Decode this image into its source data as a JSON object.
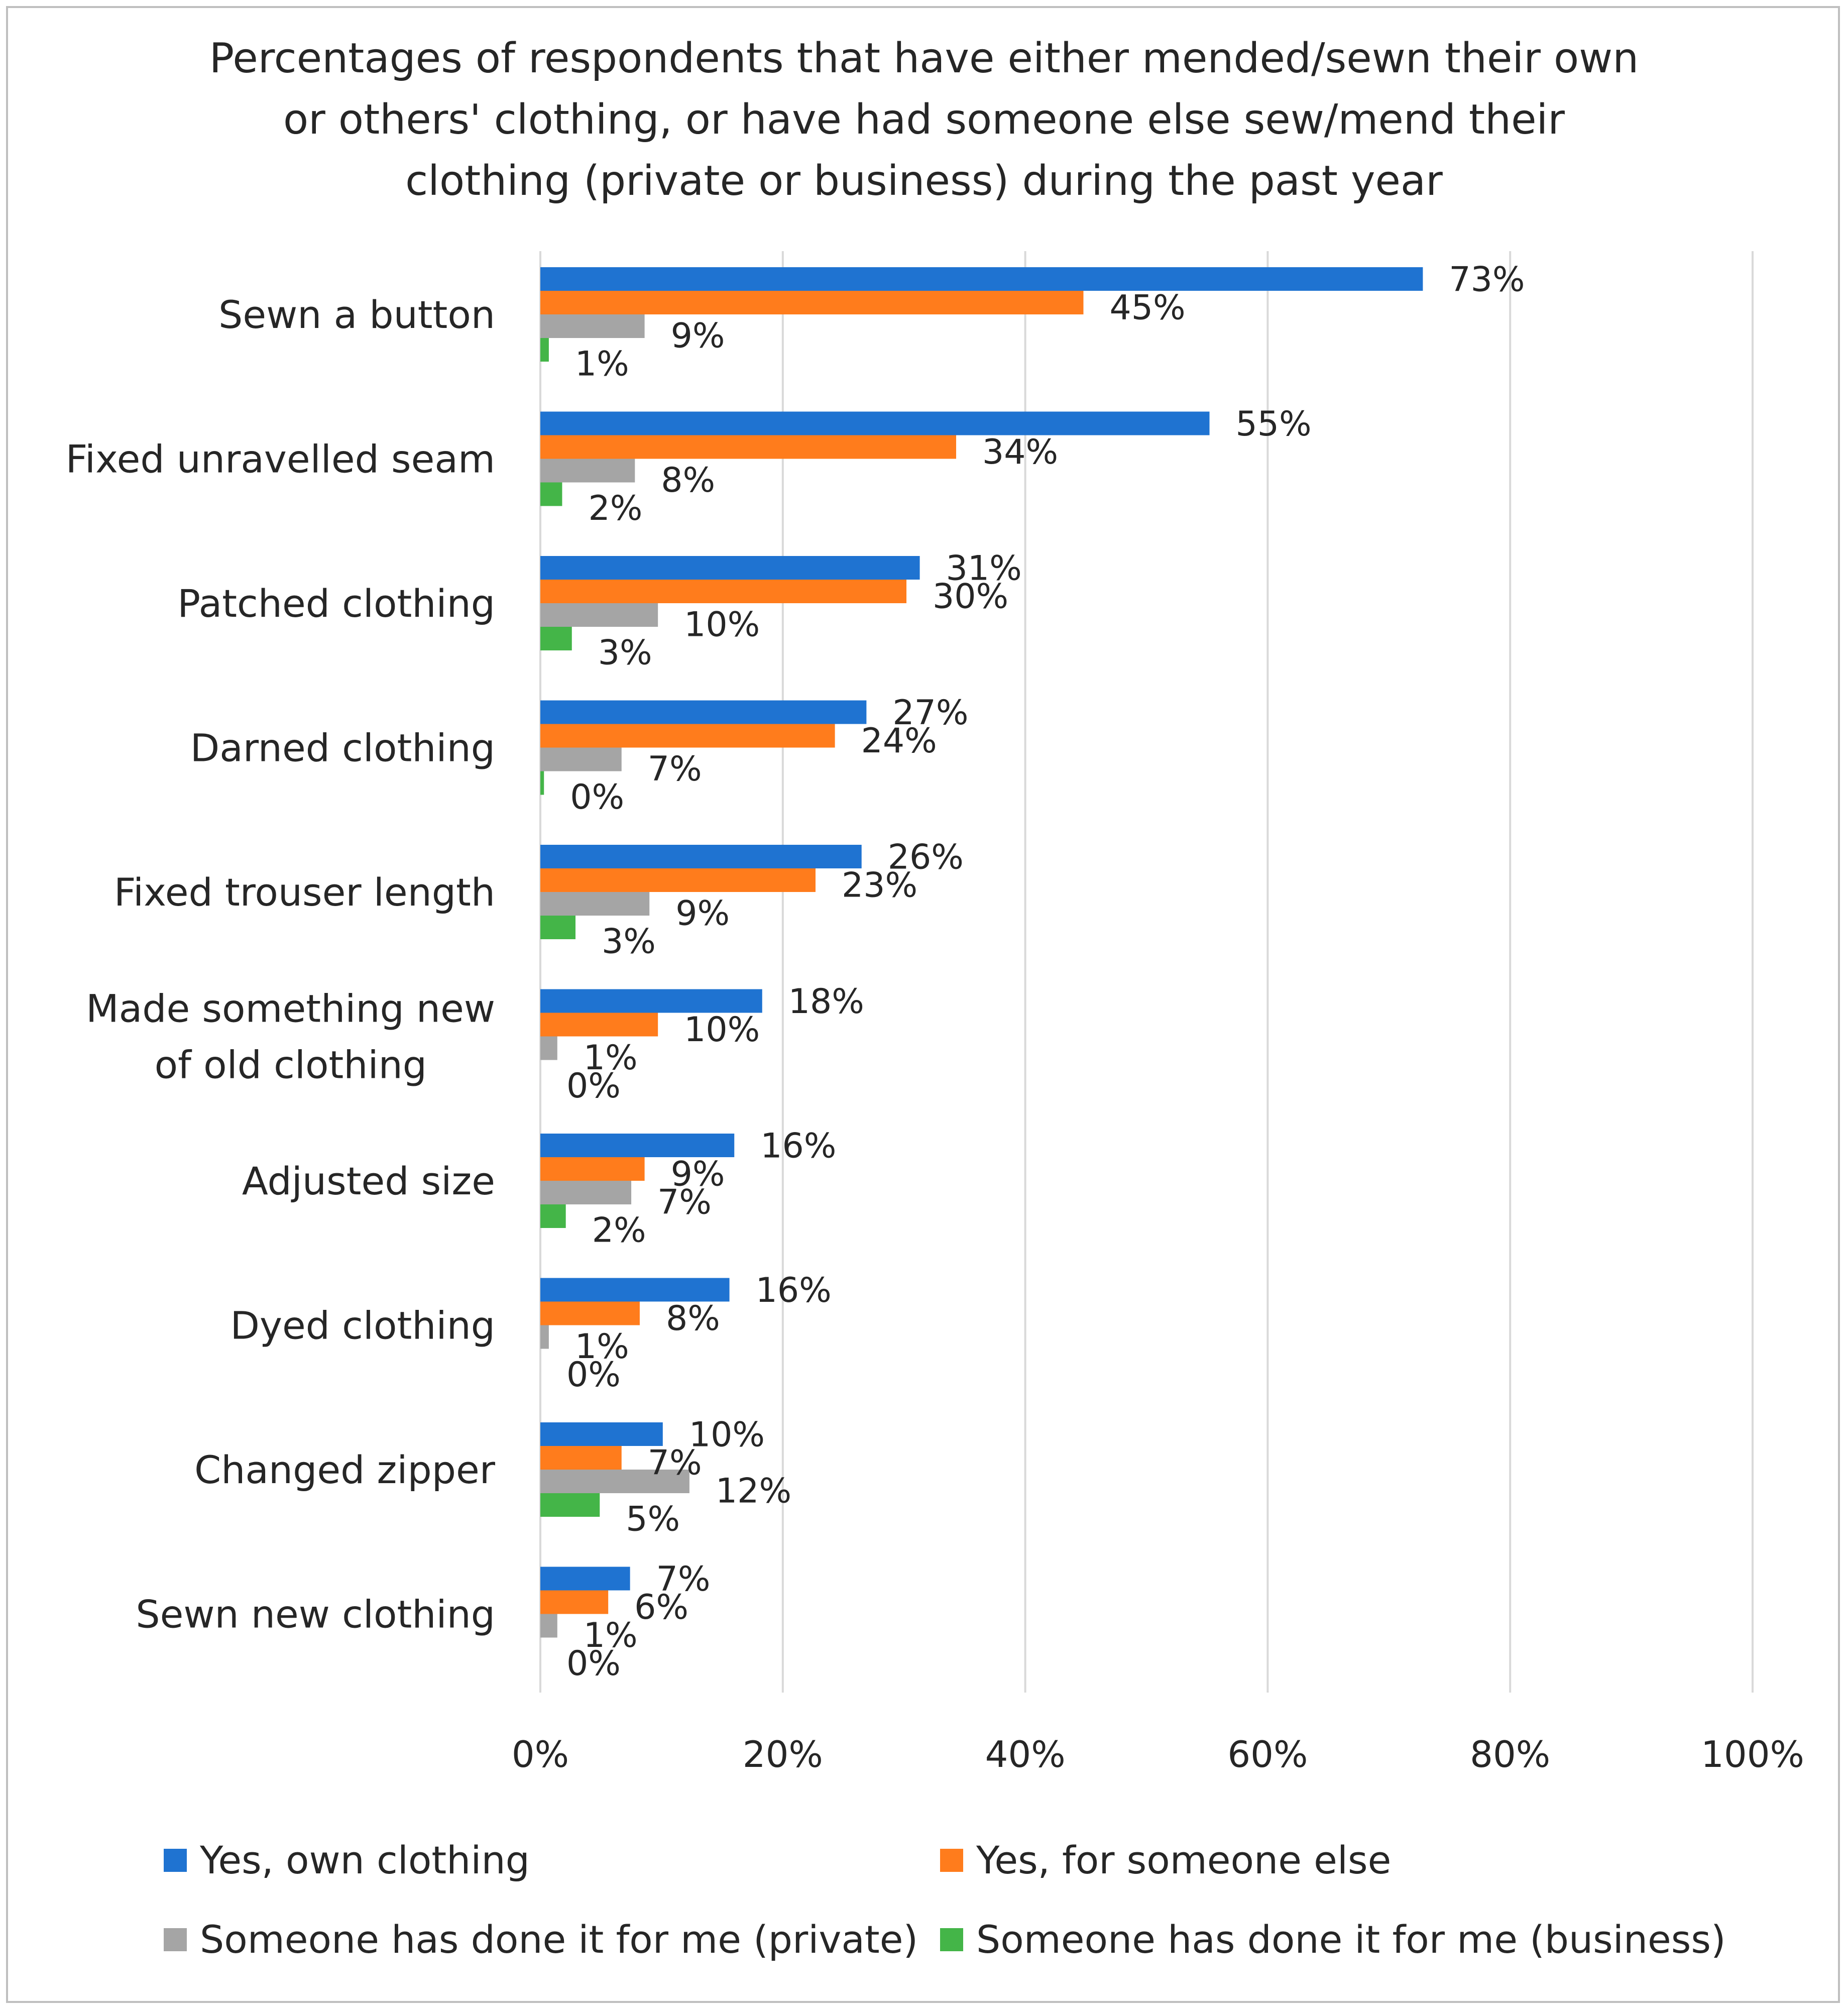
{
  "chart_data": {
    "type": "bar",
    "orientation": "horizontal",
    "title_lines": [
      "Percentages of respondents that have either mended/sewn their own",
      "or others' clothing, or have had someone else sew/mend their",
      "clothing (private or business) during the past year"
    ],
    "categories": [
      [
        "Sewn a button"
      ],
      [
        "Fixed unravelled seam"
      ],
      [
        "Patched clothing"
      ],
      [
        "Darned clothing"
      ],
      [
        "Fixed trouser length"
      ],
      [
        "Made something new",
        "of old clothing"
      ],
      [
        "Adjusted size"
      ],
      [
        "Dyed clothing"
      ],
      [
        "Changed zipper"
      ],
      [
        "Sewn new clothing"
      ]
    ],
    "series": [
      {
        "name": "Yes, own clothing",
        "color": "#1f73d1",
        "values": [
          72.8,
          55.2,
          31.3,
          26.9,
          26.5,
          18.3,
          16.0,
          15.6,
          10.1,
          7.4
        ],
        "labels": [
          "73%",
          "55%",
          "31%",
          "27%",
          "26%",
          "18%",
          "16%",
          "16%",
          "10%",
          "7%"
        ]
      },
      {
        "name": "Yes, for someone else",
        "color": "#ff7c1c",
        "values": [
          44.8,
          34.3,
          30.2,
          24.3,
          22.7,
          9.7,
          8.6,
          8.2,
          6.7,
          5.6
        ],
        "labels": [
          "45%",
          "34%",
          "30%",
          "24%",
          "23%",
          "10%",
          "9%",
          "8%",
          "7%",
          "6%"
        ]
      },
      {
        "name": "Someone has done it for me (private)",
        "color": "#a5a5a5",
        "values": [
          8.6,
          7.8,
          9.7,
          6.7,
          9.0,
          1.4,
          7.5,
          0.7,
          12.3,
          1.4
        ],
        "labels": [
          "9%",
          "8%",
          "10%",
          "7%",
          "9%",
          "1%",
          "7%",
          "1%",
          "12%",
          "1%"
        ]
      },
      {
        "name": "Someone has done it for me (business)",
        "color": "#44b548",
        "values": [
          0.7,
          1.8,
          2.6,
          0.3,
          2.9,
          0.0,
          2.1,
          0.0,
          4.9,
          0.0
        ],
        "labels": [
          "1%",
          "2%",
          "3%",
          "0%",
          "3%",
          "0%",
          "2%",
          "0%",
          "5%",
          "0%"
        ]
      }
    ],
    "x_axis": {
      "range": [
        0,
        100
      ],
      "ticks": [
        0,
        20,
        40,
        60,
        80,
        100
      ],
      "tick_labels": [
        "0%",
        "20%",
        "40%",
        "60%",
        "80%",
        "100%"
      ]
    },
    "grid": true,
    "legend_position": "bottom"
  }
}
